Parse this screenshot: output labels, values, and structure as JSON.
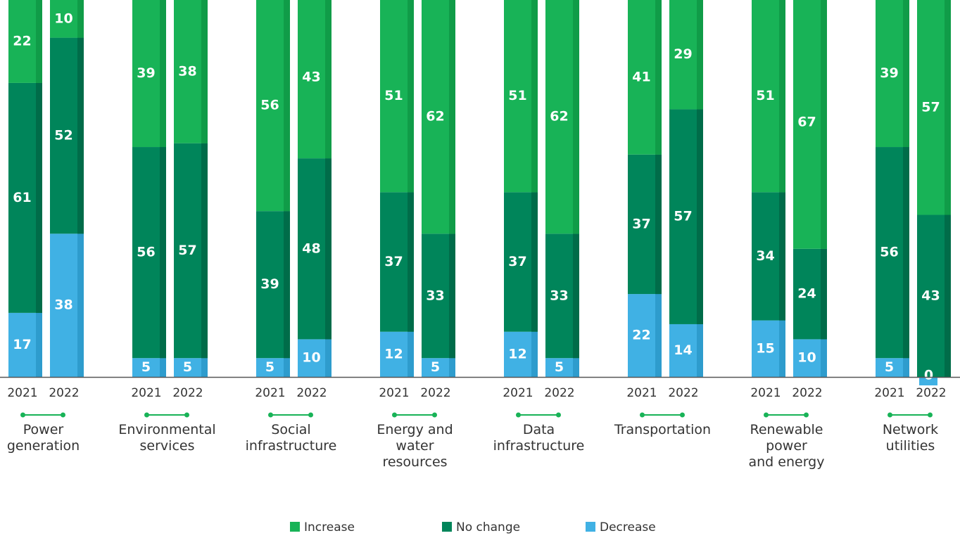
{
  "chart_data": {
    "type": "stacked-bar",
    "stack_order": [
      "Decrease",
      "No change",
      "Increase"
    ],
    "series": [
      {
        "name": "Increase",
        "color": "#18b357",
        "edge_color": "#109c48"
      },
      {
        "name": "No change",
        "color": "#00855a",
        "edge_color": "#006c49"
      },
      {
        "name": "Decrease",
        "color": "#40b1e4",
        "edge_color": "#2e9ccd"
      }
    ],
    "ylim": [
      0,
      100
    ],
    "groups": [
      {
        "category": [
          "Power",
          "generation"
        ],
        "bars": [
          {
            "year": "2021",
            "Increase": 22,
            "No change": 61,
            "Decrease": 17
          },
          {
            "year": "2022",
            "Increase": 10,
            "No change": 52,
            "Decrease": 38
          }
        ]
      },
      {
        "category": [
          "Environmental",
          "services"
        ],
        "bars": [
          {
            "year": "2021",
            "Increase": 39,
            "No change": 56,
            "Decrease": 5
          },
          {
            "year": "2022",
            "Increase": 38,
            "No change": 57,
            "Decrease": 5
          }
        ]
      },
      {
        "category": [
          "Social",
          "infrastructure"
        ],
        "bars": [
          {
            "year": "2021",
            "Increase": 56,
            "No change": 39,
            "Decrease": 5
          },
          {
            "year": "2022",
            "Increase": 43,
            "No change": 48,
            "Decrease": 10
          }
        ]
      },
      {
        "category": [
          "Energy and",
          "water",
          "resources"
        ],
        "bars": [
          {
            "year": "2021",
            "Increase": 51,
            "No change": 37,
            "Decrease": 12
          },
          {
            "year": "2022",
            "Increase": 62,
            "No change": 33,
            "Decrease": 5
          }
        ]
      },
      {
        "category": [
          "Data",
          "infrastructure"
        ],
        "bars": [
          {
            "year": "2021",
            "Increase": 51,
            "No change": 37,
            "Decrease": 12
          },
          {
            "year": "2022",
            "Increase": 62,
            "No change": 33,
            "Decrease": 5
          }
        ]
      },
      {
        "category": [
          "Transportation"
        ],
        "bars": [
          {
            "year": "2021",
            "Increase": 41,
            "No change": 37,
            "Decrease": 22
          },
          {
            "year": "2022",
            "Increase": 29,
            "No change": 57,
            "Decrease": 14
          }
        ]
      },
      {
        "category": [
          "Renewable",
          "power",
          "and energy"
        ],
        "bars": [
          {
            "year": "2021",
            "Increase": 51,
            "No change": 34,
            "Decrease": 15
          },
          {
            "year": "2022",
            "Increase": 67,
            "No change": 24,
            "Decrease": 10
          }
        ]
      },
      {
        "category": [
          "Network",
          "utilities"
        ],
        "bars": [
          {
            "year": "2021",
            "Increase": 39,
            "No change": 56,
            "Decrease": 5
          },
          {
            "year": "2022",
            "Increase": 57,
            "No change": 43,
            "Decrease": 0
          }
        ]
      }
    ],
    "legend": {
      "placement": "bottom-center",
      "entries": [
        "Increase",
        "No change",
        "Decrease"
      ]
    },
    "axis_line_color": "#555555",
    "group_marker_color": "#18b357"
  }
}
